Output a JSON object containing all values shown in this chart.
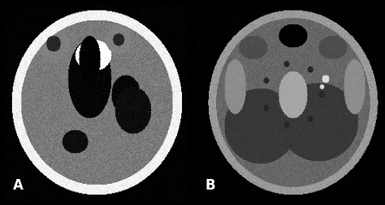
{
  "figure_width": 4.74,
  "figure_height": 2.52,
  "dpi": 100,
  "label_A": "A",
  "label_B": "B",
  "label_color": "white",
  "label_fontsize": 12,
  "background_color": "black",
  "border_color": "#888888",
  "border_linewidth": 1.5
}
